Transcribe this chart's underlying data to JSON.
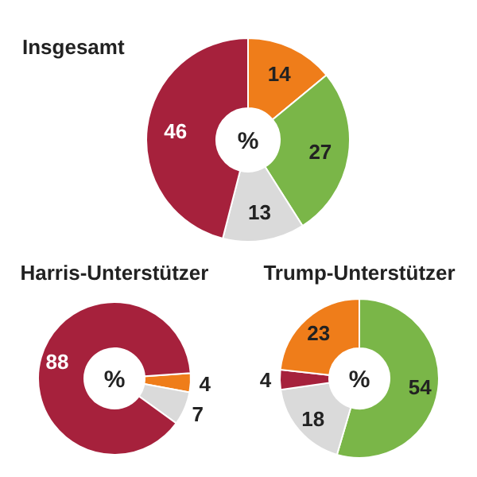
{
  "chart_data": [
    {
      "type": "donut",
      "title": "Insgesamt",
      "categories": [
        null,
        null,
        null,
        null
      ],
      "values": [
        14,
        27,
        13,
        46
      ],
      "colors": [
        "#ef7d1a",
        "#7ab648",
        "#dadada",
        "#a6213c"
      ],
      "data_labels": true,
      "annotations": [
        "%"
      ]
    },
    {
      "type": "donut",
      "title": "Harris-Unterstützer",
      "categories": [
        null,
        null,
        null
      ],
      "values": [
        4,
        7,
        88
      ],
      "colors": [
        "#ef7d1a",
        "#dadada",
        "#a6213c"
      ],
      "data_labels": true,
      "annotations": [
        "%"
      ]
    },
    {
      "type": "donut",
      "title": "Trump-Unterstützer",
      "categories": [
        null,
        null,
        null,
        null
      ],
      "values": [
        54,
        18,
        4,
        23
      ],
      "colors": [
        "#7ab648",
        "#dadada",
        "#a6213c",
        "#ef7d1a"
      ],
      "data_labels": true,
      "annotations": [
        "%"
      ]
    }
  ]
}
